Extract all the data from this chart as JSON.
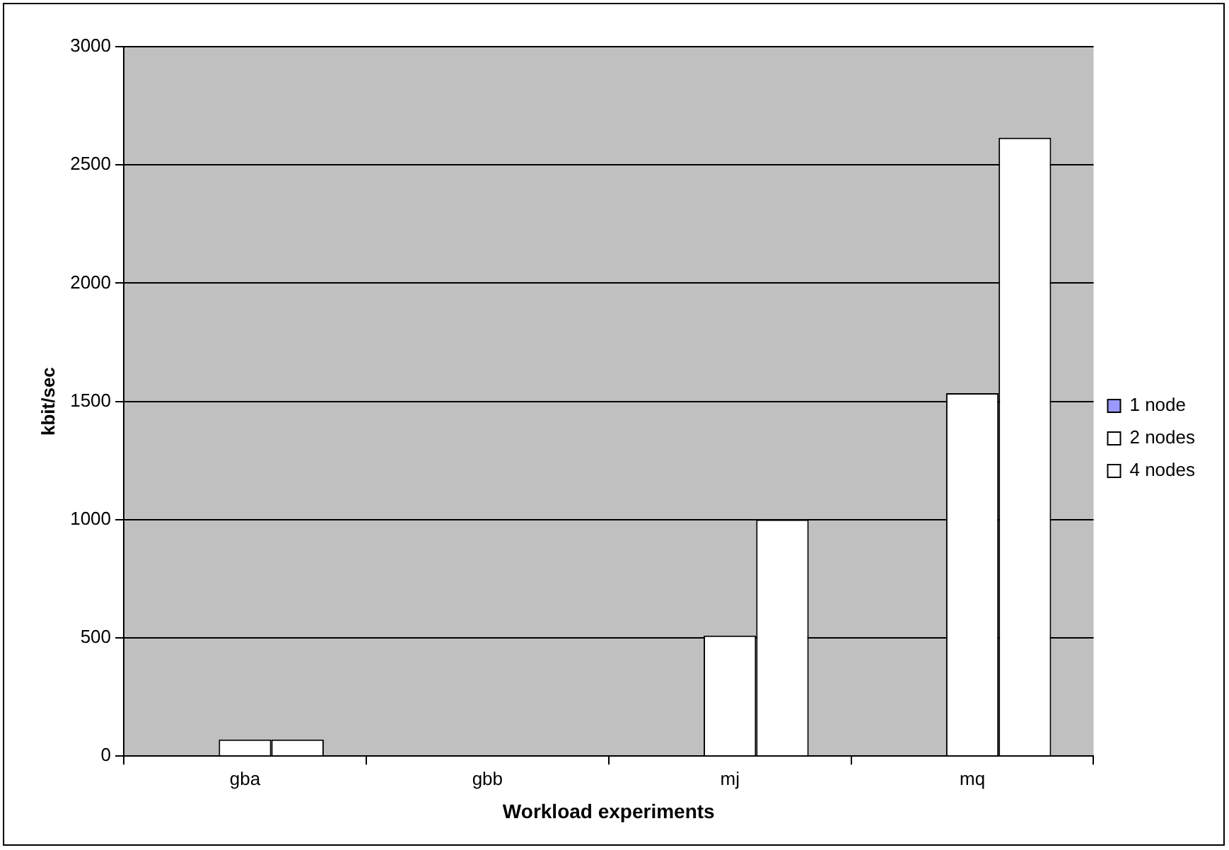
{
  "chart_data": {
    "type": "bar",
    "xlabel": "Workload experiments",
    "ylabel": "kbit/sec",
    "categories": [
      "gba",
      "gbb",
      "mj",
      "mq"
    ],
    "series": [
      {
        "name": "1 node",
        "color": "#9999ff",
        "values": [
          null,
          null,
          null,
          null
        ]
      },
      {
        "name": "2 nodes",
        "color": "#ffffff",
        "values": [
          70,
          null,
          510,
          1535
        ]
      },
      {
        "name": "4 nodes",
        "color": "#ffffff",
        "values": [
          70,
          null,
          1000,
          2615
        ]
      }
    ],
    "ylim": [
      0,
      3000
    ],
    "yticks": [
      0,
      500,
      1000,
      1500,
      2000,
      2500,
      3000
    ],
    "grid": "y",
    "legend": "right"
  }
}
